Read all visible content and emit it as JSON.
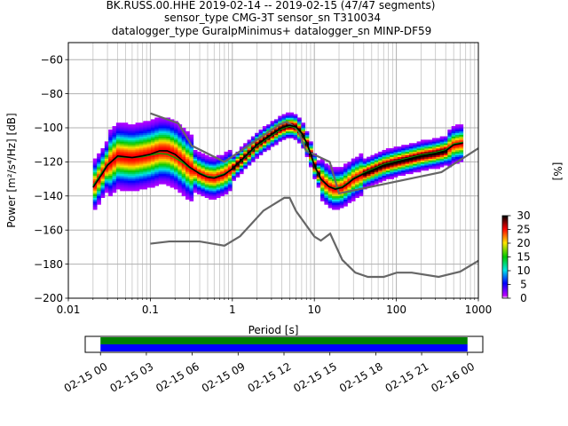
{
  "chart_data": {
    "type": "heatmap",
    "title_lines": [
      "BK.RUSS.00.HHE   2019-02-14 -- 2019-02-15  (47/47 segments)",
      "sensor_type CMG-3T sensor_sn T310034",
      "datalogger_type GuralpMinimus+ datalogger_sn MINP-DF59"
    ],
    "xlabel": "Period [s]",
    "ylabel": "Power [m²/s⁴/Hz] [dB]",
    "x_scale": "log",
    "xlim": [
      0.01,
      1000
    ],
    "ylim": [
      -200,
      -50
    ],
    "x_ticks": [
      {
        "value": 0.01,
        "label": "0.01"
      },
      {
        "value": 0.1,
        "label": "0.1"
      },
      {
        "value": 1,
        "label": "1"
      },
      {
        "value": 10,
        "label": "10"
      },
      {
        "value": 100,
        "label": "100"
      },
      {
        "value": 1000,
        "label": "1000"
      }
    ],
    "y_ticks": [
      {
        "value": -60,
        "label": "−60"
      },
      {
        "value": -80,
        "label": "−80"
      },
      {
        "value": -100,
        "label": "−100"
      },
      {
        "value": -120,
        "label": "−120"
      },
      {
        "value": -140,
        "label": "−140"
      },
      {
        "value": -160,
        "label": "−160"
      },
      {
        "value": -180,
        "label": "−180"
      },
      {
        "value": -200,
        "label": "−200"
      }
    ],
    "grid": true,
    "noise_model_high": {
      "x": [
        0.1,
        0.22,
        0.32,
        0.8,
        3.8,
        4.6,
        6.3,
        7.9,
        15.4,
        20,
        354.8,
        1000
      ],
      "y": [
        -91.5,
        -97.4,
        -110.5,
        -120,
        -98,
        -96.5,
        -101,
        -113.5,
        -120,
        -138.5,
        -126,
        -112
      ]
    },
    "noise_model_low": {
      "x": [
        0.1,
        0.17,
        0.4,
        0.8,
        1.24,
        2.4,
        4.3,
        5.0,
        6.0,
        10.0,
        12.0,
        15.6,
        21.9,
        31.6,
        45,
        70,
        101,
        154,
        328,
        600,
        1000
      ],
      "y": [
        -168,
        -166.7,
        -166.7,
        -169.2,
        -163.7,
        -148.6,
        -141.1,
        -141.1,
        -149,
        -163.8,
        -166.2,
        -162.1,
        -177.5,
        -185,
        -187.5,
        -187.5,
        -185,
        -185,
        -187.5,
        -184.4,
        -178
      ]
    },
    "mode_curve": {
      "x": [
        0.02,
        0.025,
        0.03,
        0.04,
        0.06,
        0.08,
        0.1,
        0.13,
        0.16,
        0.2,
        0.25,
        0.3,
        0.4,
        0.5,
        0.6,
        0.8,
        1,
        1.5,
        2,
        3,
        4,
        5,
        6,
        7,
        8,
        9,
        10,
        12,
        15,
        18,
        22,
        26,
        30,
        40,
        50,
        70,
        100,
        150,
        200,
        300,
        400,
        500,
        650
      ],
      "y": [
        -135,
        -128,
        -122,
        -116.5,
        -117.5,
        -116.5,
        -115.5,
        -113.5,
        -113.5,
        -115.5,
        -119.5,
        -123,
        -127,
        -129,
        -129.5,
        -127.5,
        -124,
        -116,
        -110,
        -104,
        -100,
        -98.5,
        -99.5,
        -103,
        -108.5,
        -115,
        -122,
        -130,
        -134.5,
        -136,
        -135,
        -132.5,
        -130,
        -127,
        -125,
        -122,
        -120,
        -118,
        -116.5,
        -115,
        -113.5,
        -110,
        -109
      ]
    },
    "mean_curve": {
      "x": [
        0.02,
        0.025,
        0.03,
        0.04,
        0.06,
        0.08,
        0.1,
        0.13,
        0.16,
        0.2,
        0.25,
        0.3,
        0.4,
        0.5,
        0.6,
        0.8,
        1,
        1.5,
        2,
        3,
        4,
        5,
        6,
        7,
        8,
        9,
        10,
        12,
        15,
        18,
        22,
        26,
        30,
        40,
        50,
        70,
        100,
        150,
        200,
        300,
        400,
        500,
        650
      ],
      "y": [
        -134,
        -127,
        -121.5,
        -117,
        -117.5,
        -117,
        -116,
        -115,
        -115.5,
        -117.5,
        -120.5,
        -123.5,
        -126.5,
        -128.5,
        -129,
        -127,
        -124,
        -116.5,
        -110.5,
        -104.5,
        -100.5,
        -99,
        -100,
        -103.5,
        -109,
        -115.5,
        -122.5,
        -130.5,
        -134.5,
        -135.5,
        -134.5,
        -132,
        -129.5,
        -126.5,
        -124.5,
        -121.5,
        -119.5,
        -117.5,
        -116,
        -114.5,
        -113,
        -109.5,
        -108.5
      ]
    },
    "colorbar": {
      "label": "[%]",
      "range": [
        0,
        30
      ],
      "ticks": [
        {
          "value": 0,
          "label": "0"
        },
        {
          "value": 5,
          "label": "5"
        },
        {
          "value": 10,
          "label": "10"
        },
        {
          "value": 15,
          "label": "15"
        },
        {
          "value": 20,
          "label": "20"
        },
        {
          "value": 25,
          "label": "25"
        },
        {
          "value": 30,
          "label": "30"
        }
      ]
    },
    "timeline": {
      "range_hours": [
        -1,
        25
      ],
      "bars": [
        {
          "start_hour": 0,
          "end_hour": 24,
          "color": "#008000"
        },
        {
          "start_hour": 0,
          "end_hour": 24,
          "color": "#0000ff"
        }
      ],
      "ticks": [
        {
          "hour": 0,
          "label": "02-15 00"
        },
        {
          "hour": 3,
          "label": "02-15 03"
        },
        {
          "hour": 6,
          "label": "02-15 06"
        },
        {
          "hour": 9,
          "label": "02-15 09"
        },
        {
          "hour": 12,
          "label": "02-15 12"
        },
        {
          "hour": 15,
          "label": "02-15 15"
        },
        {
          "hour": 18,
          "label": "02-15 18"
        },
        {
          "hour": 21,
          "label": "02-15 21"
        },
        {
          "hour": 24,
          "label": "02-16 00"
        }
      ]
    },
    "colors": {
      "noise_model": "#666666",
      "mode": "#000000",
      "mean": "#00aa00"
    }
  }
}
